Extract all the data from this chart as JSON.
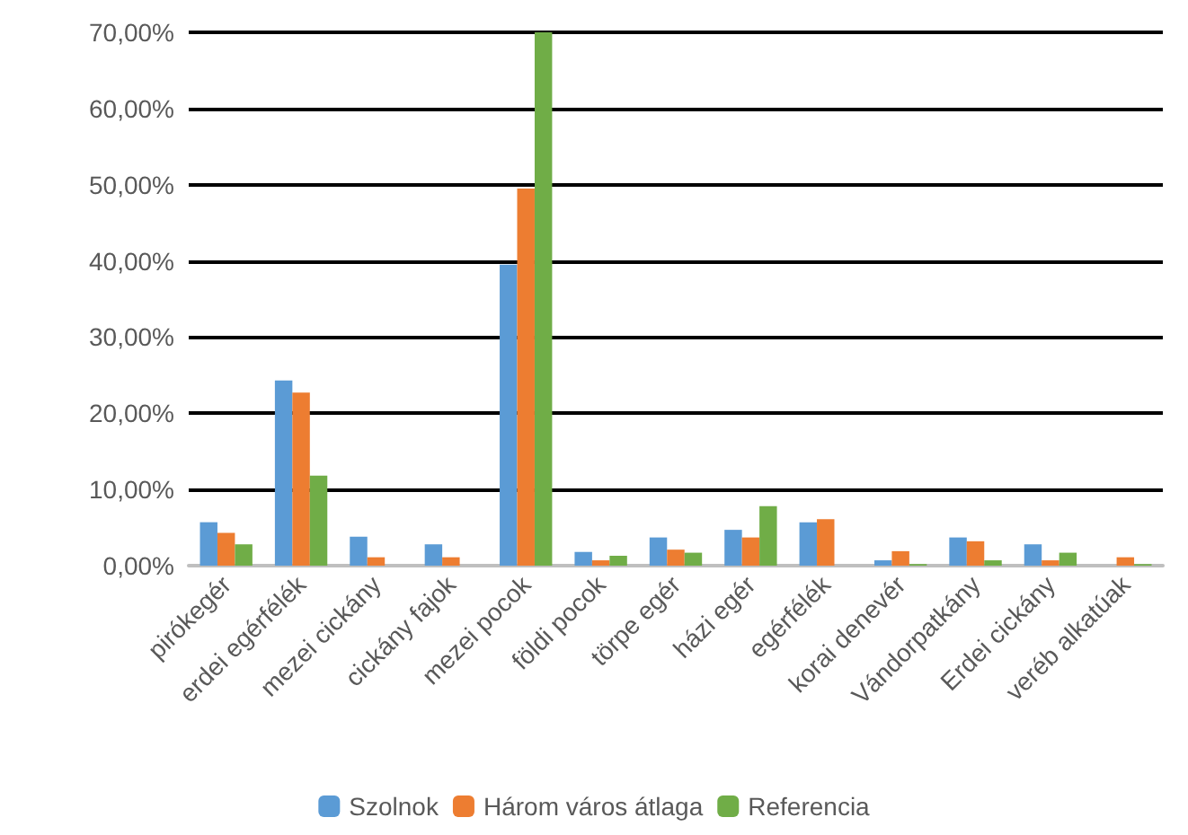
{
  "chart_data": {
    "type": "bar",
    "categories": [
      "pirókegér",
      "erdei egérfélék",
      "mezei cickány",
      "cickány fajok",
      "mezei pocok",
      "földi pocok",
      "törpe egér",
      "házi egér",
      "egérfélék",
      "korai denevér",
      "Vándorpatkány",
      "Erdei cickány",
      "veréb alkatúak"
    ],
    "series": [
      {
        "name": "Szolnok",
        "color": "#5b9bd5",
        "values": [
          5.7,
          24.3,
          3.8,
          2.8,
          39.5,
          1.8,
          3.7,
          4.7,
          5.7,
          0.7,
          3.7,
          2.8,
          0
        ]
      },
      {
        "name": "Három város átlaga",
        "color": "#ed7d31",
        "values": [
          4.3,
          22.7,
          1.1,
          1.1,
          49.5,
          0.7,
          2.1,
          3.7,
          6.1,
          1.9,
          3.2,
          0.7,
          1.1
        ]
      },
      {
        "name": "Referencia",
        "color": "#70ad47",
        "values": [
          2.8,
          11.8,
          0,
          0,
          70,
          1.3,
          1.7,
          7.8,
          0,
          0.2,
          0.7,
          1.7,
          0.2
        ]
      }
    ],
    "ylim": [
      0,
      70
    ],
    "yticks": [
      {
        "value": 0,
        "label": "0,00%"
      },
      {
        "value": 10,
        "label": "10,00%"
      },
      {
        "value": 20,
        "label": "20,00%"
      },
      {
        "value": 30,
        "label": "30,00%"
      },
      {
        "value": 40,
        "label": "40,00%"
      },
      {
        "value": 50,
        "label": "50,00%"
      },
      {
        "value": 60,
        "label": "60,00%"
      },
      {
        "value": 70,
        "label": "70,00%"
      }
    ],
    "grid": "y",
    "legend": "bottom"
  }
}
